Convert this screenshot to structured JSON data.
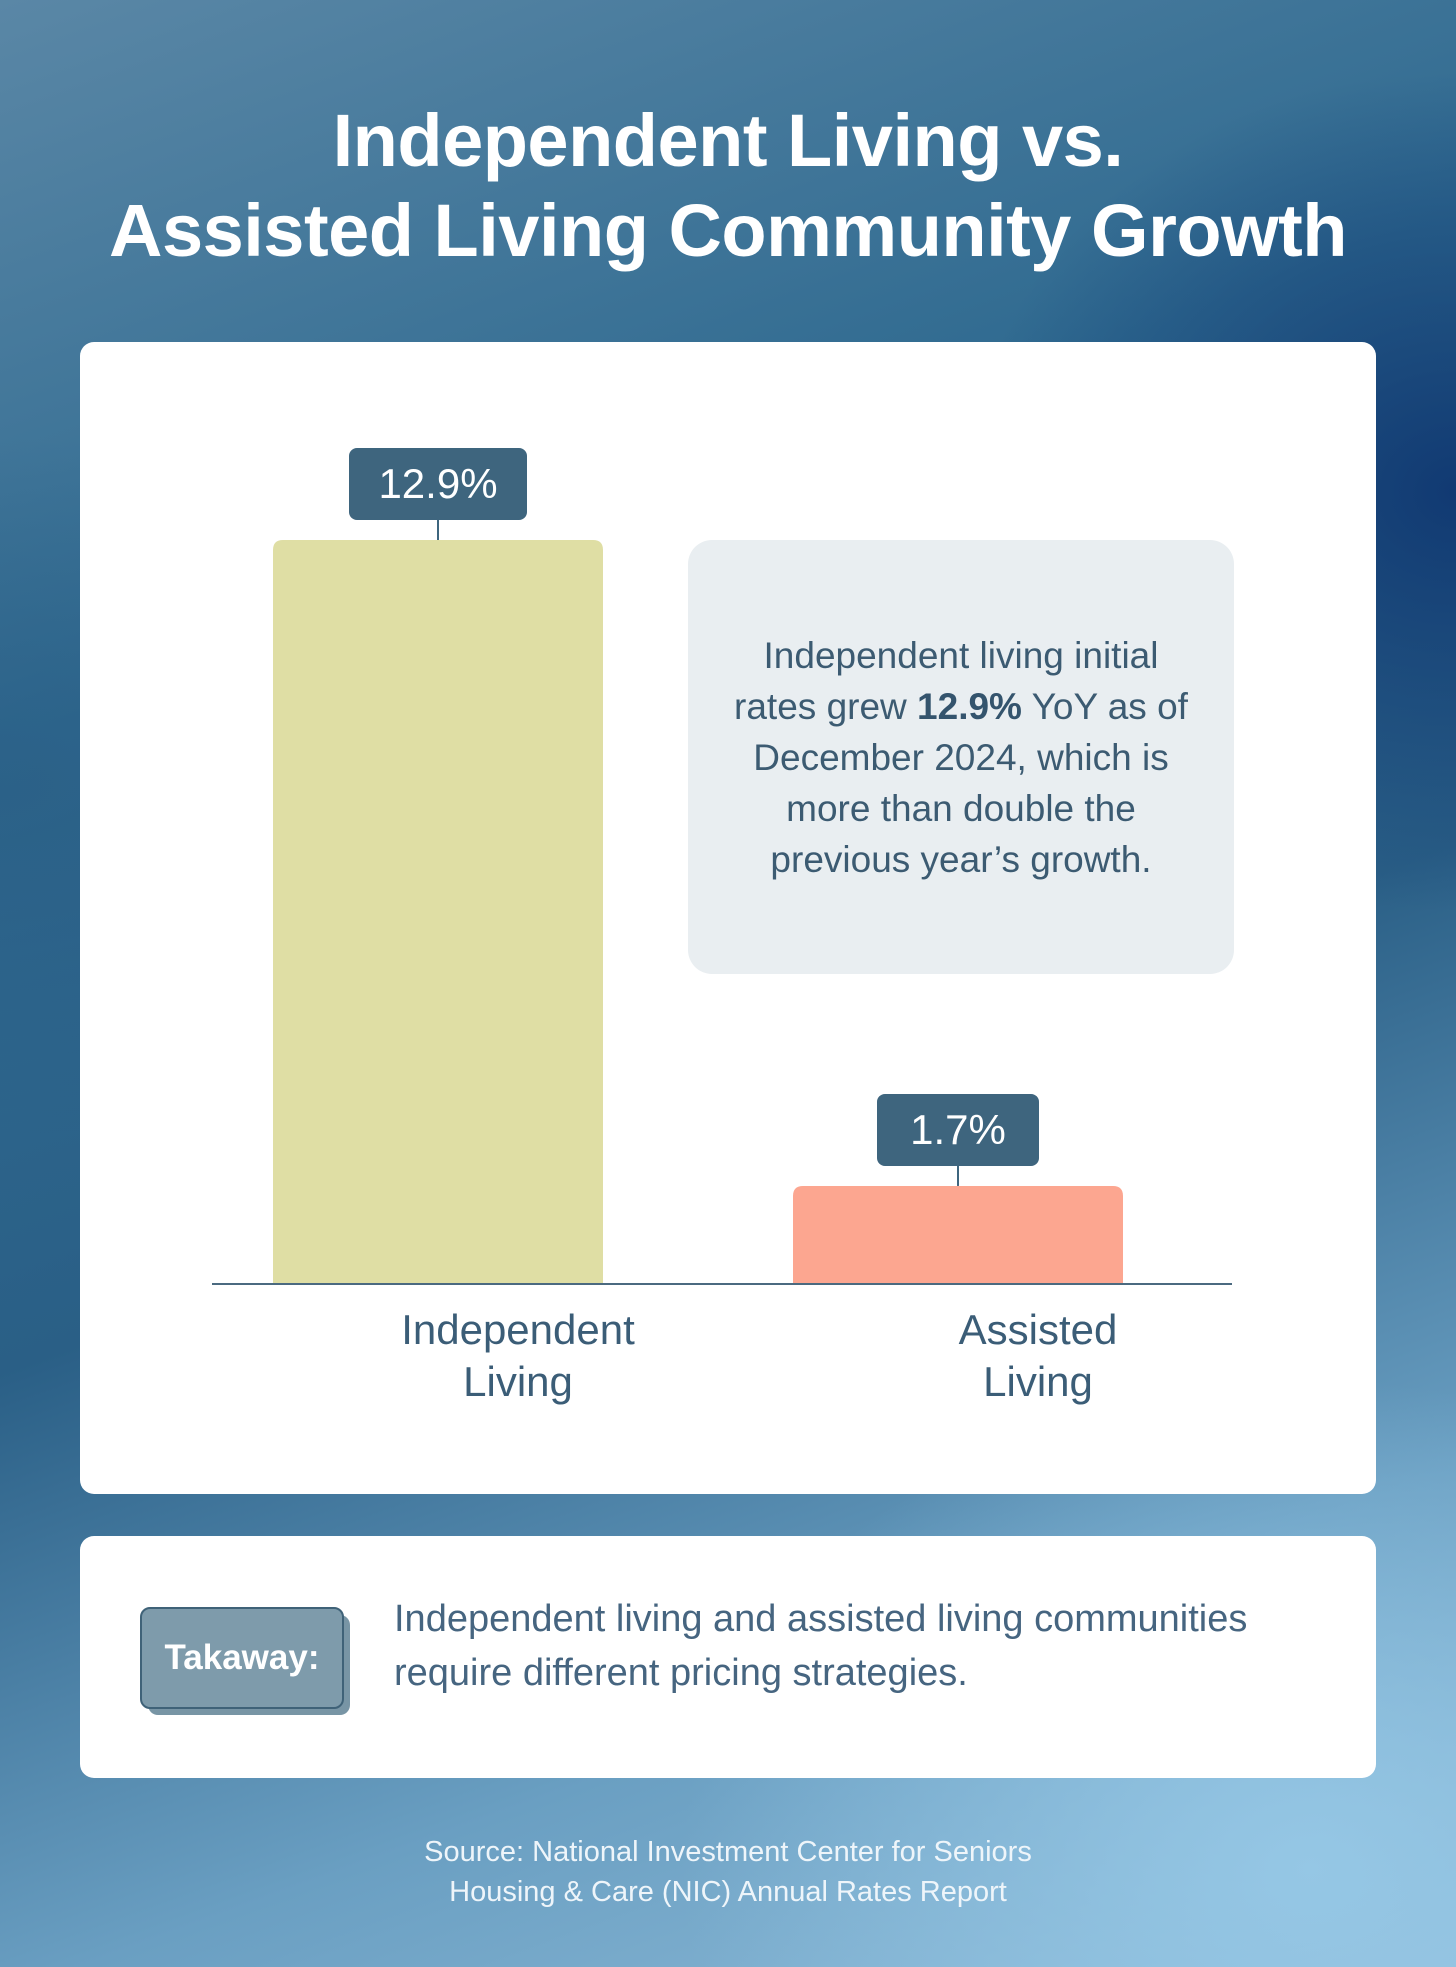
{
  "title": {
    "line1": "Independent Living vs.",
    "line2": "Assisted Living Community Growth"
  },
  "chart_data": {
    "type": "bar",
    "categories": [
      "Independent Living",
      "Assisted Living"
    ],
    "category_lines": [
      [
        "Independent",
        "Living"
      ],
      [
        "Assisted",
        "Living"
      ]
    ],
    "values": [
      12.9,
      1.7
    ],
    "data_labels": [
      "12.9%",
      "1.7%"
    ],
    "ylim": [
      0,
      12.9
    ],
    "colors": [
      "#dfdea4",
      "#fca690"
    ],
    "label_color": "#3e657e",
    "axis_color": "#4b6a80"
  },
  "callout": {
    "prefix": "Independent living initial rates grew ",
    "highlight": "12.9%",
    "suffix": " YoY as of December 2024, which is more than double the previous year’s growth."
  },
  "takeaway": {
    "badge": "Takaway:",
    "text": "Independent living and assisted living communities require different pricing strategies."
  },
  "source": {
    "line1": "Source: National Investment Center for Seniors",
    "line2": "Housing & Care (NIC) Annual Rates Report"
  }
}
